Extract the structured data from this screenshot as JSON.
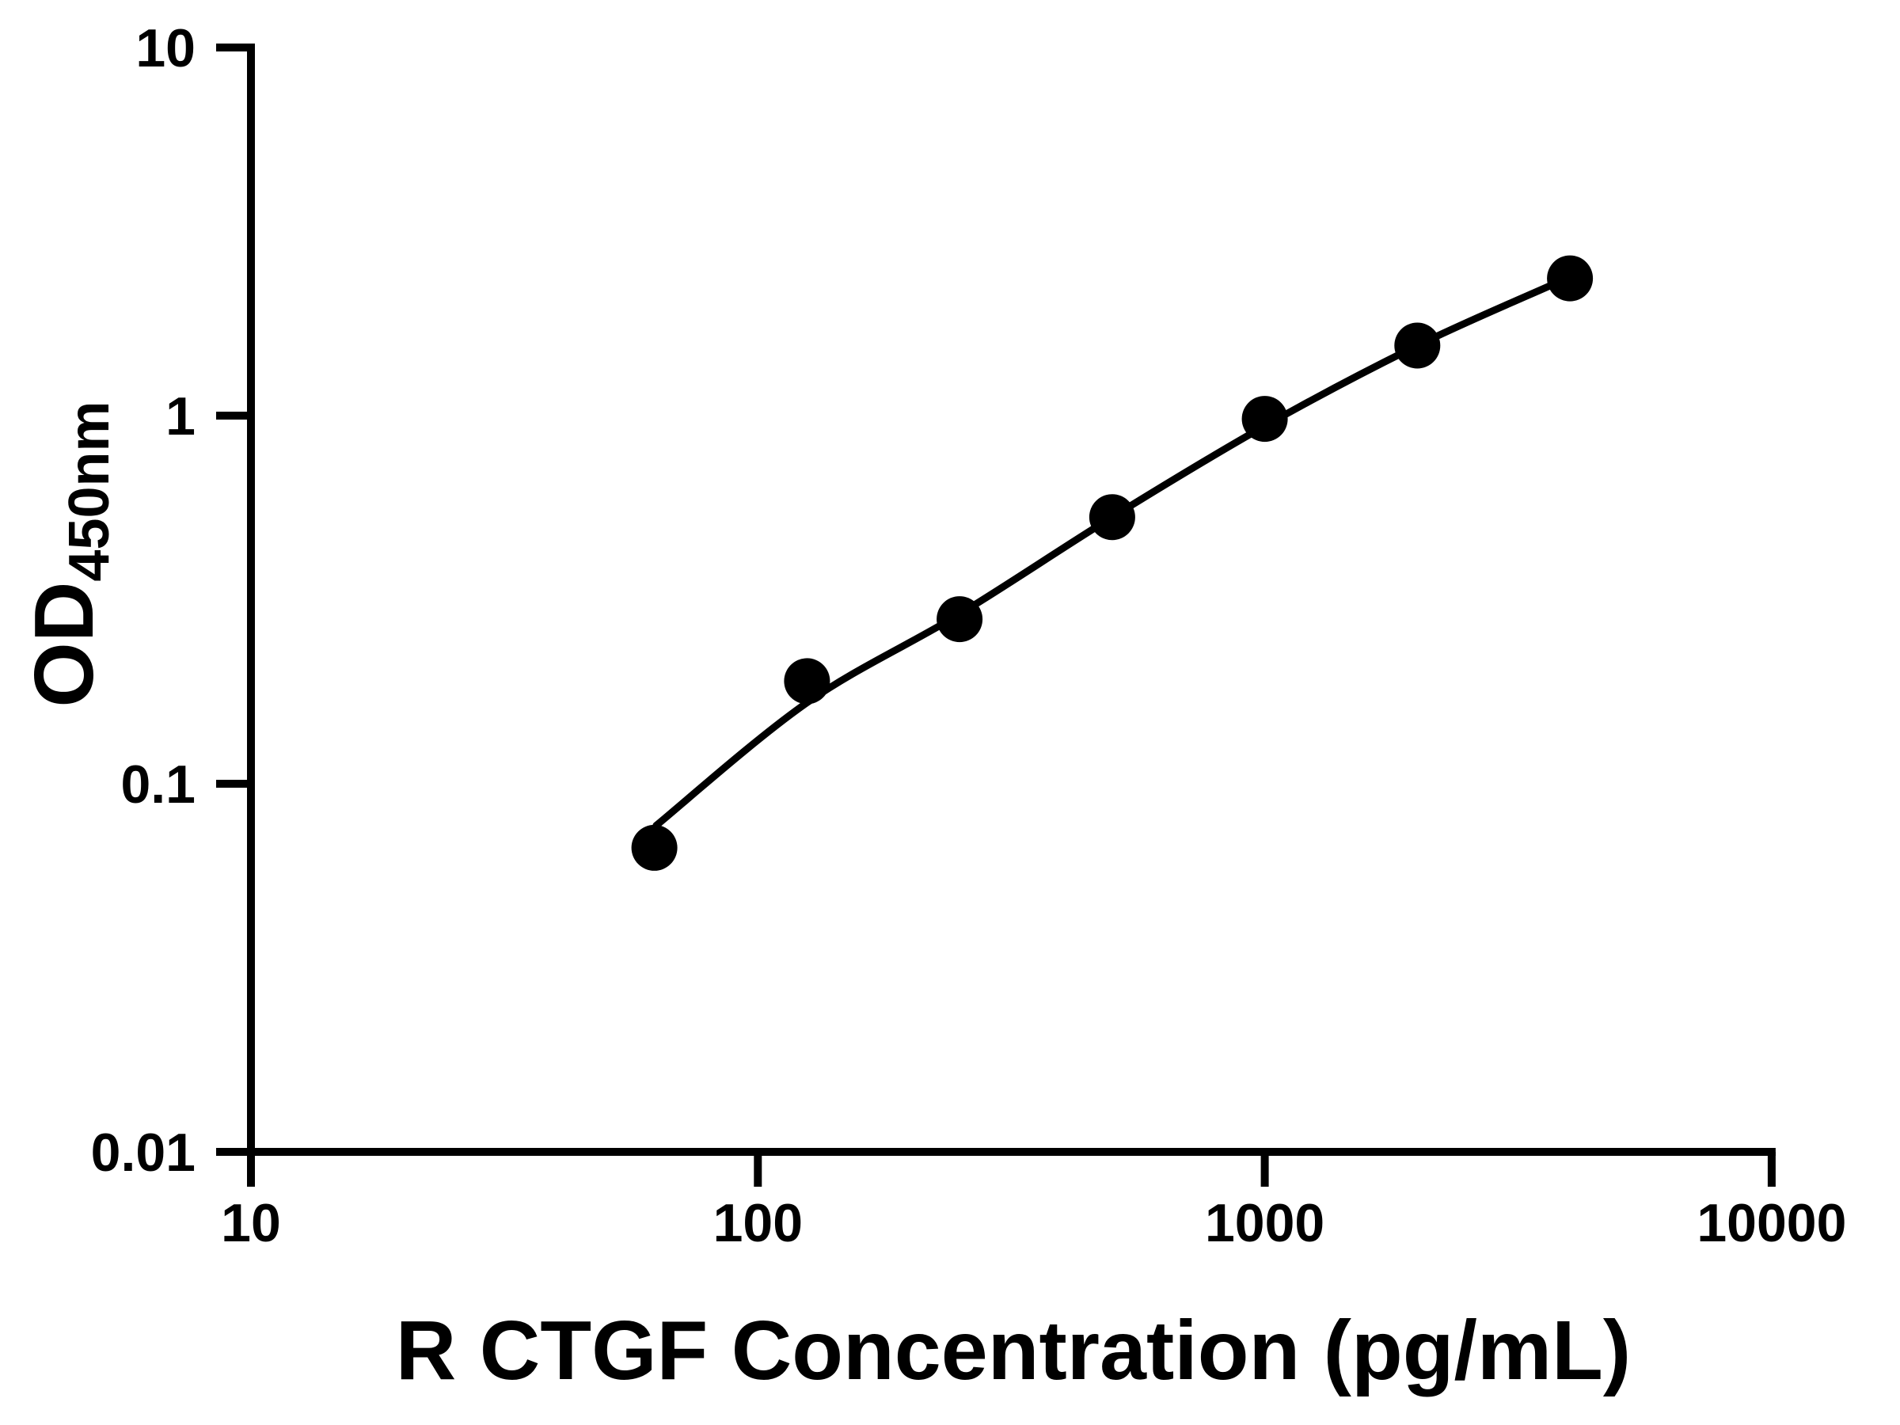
{
  "chart_data": {
    "type": "scatter",
    "title": "",
    "xlabel": "R CTGF Concentration (pg/mL)",
    "ylabel_main": "OD",
    "ylabel_sub": "450nm",
    "x_scale": "log",
    "y_scale": "log",
    "xlim": [
      10,
      10000
    ],
    "ylim": [
      0.01,
      10
    ],
    "grid": false,
    "legend": "none",
    "x_ticks": [
      "10",
      "100",
      "1000",
      "10000"
    ],
    "y_ticks": [
      "10",
      "1",
      "0.1",
      "0.01"
    ],
    "series": [
      {
        "name": "standard-points",
        "type": "scatter",
        "marker": "filled-circle",
        "x": [
          62.5,
          125,
          250,
          500,
          1000,
          2000,
          4000
        ],
        "od": [
          0.067,
          0.19,
          0.28,
          0.53,
          0.98,
          1.55,
          2.36
        ]
      },
      {
        "name": "fit-curve",
        "type": "line",
        "x": [
          63,
          125,
          250,
          500,
          1000,
          2000,
          3700
        ],
        "od": [
          0.077,
          0.166,
          0.289,
          0.53,
          0.937,
          1.55,
          2.27
        ]
      }
    ],
    "colors": {
      "points": "#000000",
      "curve": "#000000",
      "axis": "#000000",
      "background": "#ffffff"
    }
  }
}
